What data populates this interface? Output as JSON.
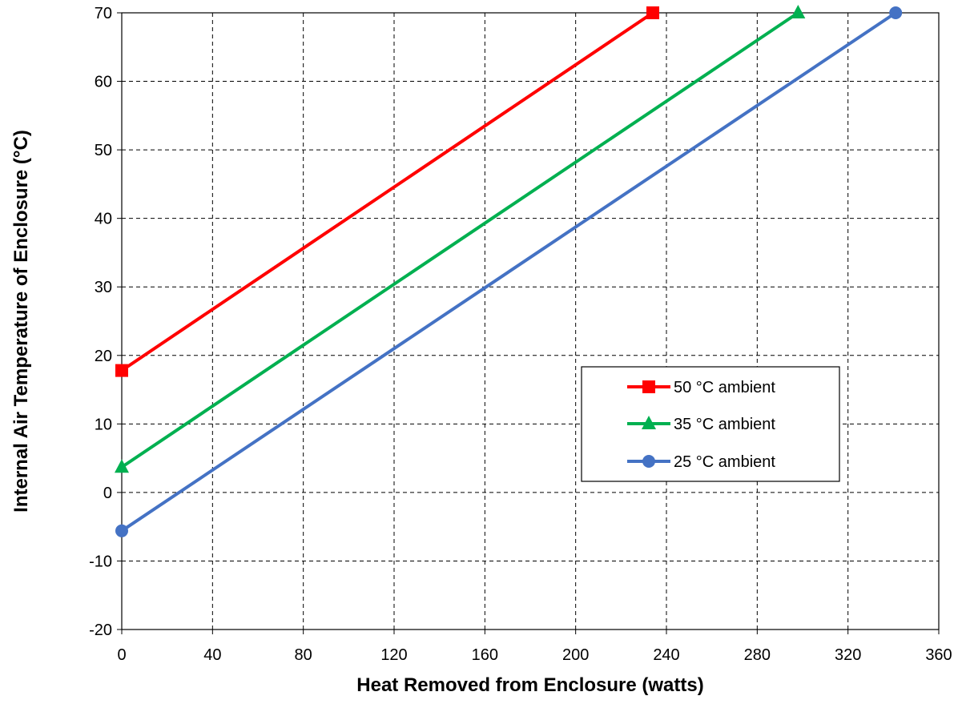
{
  "chart_data": {
    "type": "line",
    "title": "",
    "xlabel": "Heat Removed from Enclosure (watts)",
    "ylabel": "Internal Air Temperature of Enclosure (°C)",
    "xlim": [
      0,
      360
    ],
    "ylim": [
      -20,
      70
    ],
    "xticks": [
      0,
      40,
      80,
      120,
      160,
      200,
      240,
      280,
      320,
      360
    ],
    "yticks": [
      -20,
      -10,
      0,
      10,
      20,
      30,
      40,
      50,
      60,
      70
    ],
    "grid": true,
    "legend_position": "right-middle",
    "series": [
      {
        "name": "50 °C ambient",
        "color": "#ff0000",
        "marker": "square",
        "x": [
          0,
          234
        ],
        "y": [
          17.8,
          70
        ]
      },
      {
        "name": "35 °C ambient",
        "color": "#00b050",
        "marker": "triangle",
        "x": [
          0,
          298
        ],
        "y": [
          3.7,
          70
        ]
      },
      {
        "name": "25 °C ambient",
        "color": "#4472c4",
        "marker": "circle",
        "x": [
          0,
          341
        ],
        "y": [
          -5.6,
          70
        ]
      }
    ]
  }
}
